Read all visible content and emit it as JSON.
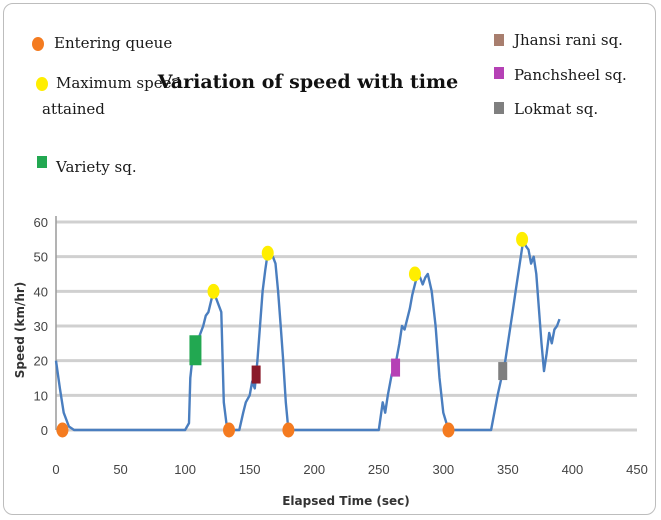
{
  "chart_data": {
    "type": "line",
    "title": "Variation of speed with time",
    "xlabel": "Elapsed Time (sec)",
    "ylabel": "Speed (km/hr)",
    "xlim": [
      0,
      450
    ],
    "ylim": [
      0,
      60
    ],
    "xticks": [
      0,
      50,
      100,
      150,
      200,
      250,
      300,
      350,
      400,
      450
    ],
    "yticks": [
      0,
      10,
      20,
      30,
      40,
      50,
      60
    ],
    "grid": "horizontal",
    "line_color": "#4a7ebf",
    "series": [
      {
        "x": [
          0,
          3,
          6,
          10,
          14,
          50,
          100,
          103,
          104,
          106,
          108,
          110,
          112,
          114,
          116,
          118,
          120,
          122,
          124,
          126,
          128,
          130,
          132,
          134,
          138,
          142,
          145,
          147,
          150,
          152,
          154,
          156,
          158,
          160,
          162,
          164,
          166,
          168,
          170,
          172,
          174,
          176,
          178,
          180,
          200,
          250,
          253,
          255,
          257,
          260,
          263,
          266,
          268,
          270,
          272,
          274,
          276,
          278,
          280,
          282,
          284,
          286,
          288,
          291,
          294,
          297,
          300,
          304,
          320,
          337,
          340,
          342,
          345,
          348,
          350,
          352,
          354,
          356,
          358,
          360,
          362,
          364,
          366,
          368,
          370,
          372,
          374,
          376,
          378,
          380,
          382,
          384,
          386,
          388,
          390
        ],
        "y": [
          20,
          12,
          5,
          1,
          0,
          0,
          0,
          2,
          15,
          22,
          24,
          26,
          28,
          30,
          33,
          34,
          37,
          40,
          38,
          36,
          34,
          8,
          2,
          0,
          0,
          0,
          5,
          8,
          10,
          14,
          12,
          20,
          30,
          40,
          46,
          51,
          50,
          50,
          48,
          40,
          30,
          20,
          8,
          0,
          0,
          0,
          8,
          5,
          10,
          16,
          19,
          25,
          30,
          29,
          32,
          35,
          39,
          42,
          45,
          44,
          42,
          44,
          45,
          40,
          30,
          15,
          5,
          0,
          0,
          0,
          6,
          10,
          15,
          20,
          25,
          30,
          35,
          40,
          45,
          50,
          55,
          53,
          52,
          48,
          50,
          45,
          35,
          25,
          17,
          22,
          28,
          25,
          29,
          30,
          32
        ]
      }
    ],
    "legend": [
      {
        "label": "Entering queue",
        "color": "#f47b20",
        "shape": "circle"
      },
      {
        "label": "Maximum speed attained",
        "color": "#ffee00",
        "shape": "circle"
      },
      {
        "label": "Variety sq.",
        "color": "#22a851",
        "shape": "square"
      },
      {
        "label": "Jhansi rani sq.",
        "color": "#a87e6e",
        "shape": "square"
      },
      {
        "label": "Panchsheel sq.",
        "color": "#b541b5",
        "shape": "square"
      },
      {
        "label": "Lokmat sq.",
        "color": "#7f7f7f",
        "shape": "square"
      }
    ],
    "markers": [
      {
        "type": "Entering queue",
        "x": 5,
        "y": 0,
        "color": "#f47b20",
        "shape": "circle"
      },
      {
        "type": "Entering queue",
        "x": 134,
        "y": 0,
        "color": "#f47b20",
        "shape": "circle"
      },
      {
        "type": "Entering queue",
        "x": 180,
        "y": 0,
        "color": "#f47b20",
        "shape": "circle"
      },
      {
        "type": "Entering queue",
        "x": 304,
        "y": 0,
        "color": "#f47b20",
        "shape": "circle"
      },
      {
        "type": "Maximum speed attained",
        "x": 122,
        "y": 40,
        "color": "#ffee00",
        "shape": "circle"
      },
      {
        "type": "Maximum speed attained",
        "x": 164,
        "y": 51,
        "color": "#ffee00",
        "shape": "circle"
      },
      {
        "type": "Maximum speed attained",
        "x": 278,
        "y": 45,
        "color": "#ffee00",
        "shape": "circle"
      },
      {
        "type": "Maximum speed attained",
        "x": 361,
        "y": 55,
        "color": "#ffee00",
        "shape": "circle"
      },
      {
        "type": "Variety sq.",
        "x": 108,
        "y": 23,
        "color": "#22a851",
        "shape": "square"
      },
      {
        "type": "Panchsheel sq.",
        "x": 263,
        "y": 18,
        "color": "#b541b5",
        "shape": "square"
      },
      {
        "type": "Lokmat sq.",
        "x": 346,
        "y": 17,
        "color": "#7f7f7f",
        "shape": "square"
      },
      {
        "type": "Jhansi rani sq.",
        "x": 155,
        "y": 16,
        "color": "#8b1a2a",
        "shape": "square"
      }
    ]
  }
}
